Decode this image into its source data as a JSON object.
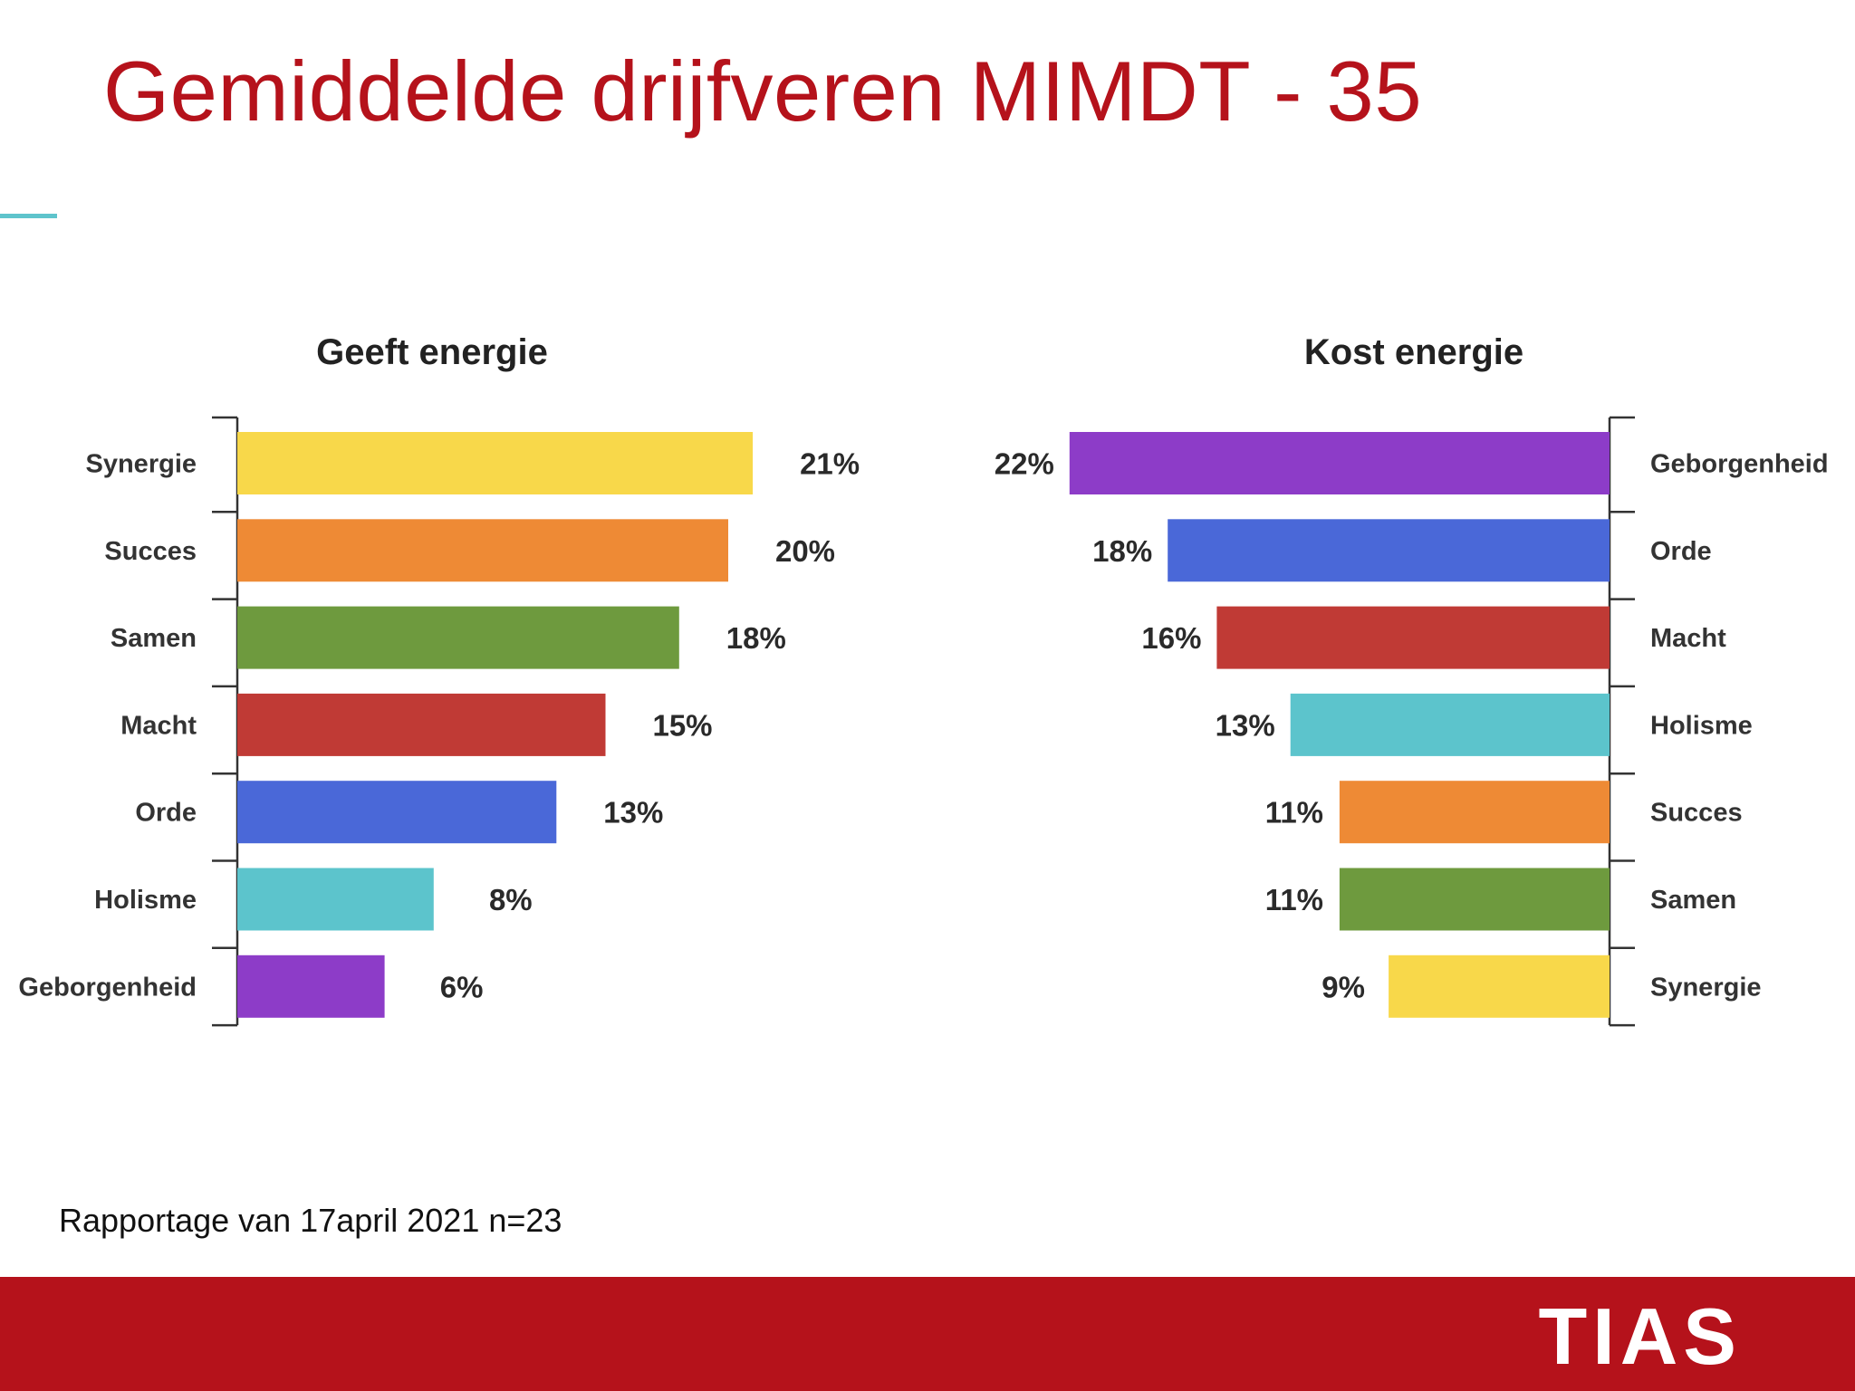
{
  "slide": {
    "title": "Gemiddelde drijfveren MIMDT - 35",
    "footnote": "Rapportage van 17april 2021 n=23",
    "brand": "TIAS"
  },
  "colors": {
    "title": "#b5121b",
    "footer": "#b5121b",
    "accent": "#5ec4cc"
  },
  "chart_data": [
    {
      "type": "bar",
      "orientation": "horizontal",
      "title": "Geeft energie",
      "categories": [
        "Synergie",
        "Succes",
        "Samen",
        "Macht",
        "Orde",
        "Holisme",
        "Geborgenheid"
      ],
      "values": [
        21,
        20,
        18,
        15,
        13,
        8,
        6
      ],
      "value_labels": [
        "21%",
        "20%",
        "18%",
        "15%",
        "13%",
        "8%",
        "6%"
      ],
      "colors": [
        "#f8d84a",
        "#ee8a35",
        "#6e9a3e",
        "#c03a35",
        "#4a68d8",
        "#5cc4cc",
        "#8d3cc8"
      ],
      "direction": "left-to-right",
      "xlim": [
        0,
        22
      ]
    },
    {
      "type": "bar",
      "orientation": "horizontal",
      "title": "Kost energie",
      "categories": [
        "Geborgenheid",
        "Orde",
        "Macht",
        "Holisme",
        "Succes",
        "Samen",
        "Synergie"
      ],
      "values": [
        22,
        18,
        16,
        13,
        11,
        11,
        9
      ],
      "value_labels": [
        "22%",
        "18%",
        "16%",
        "13%",
        "11%",
        "11%",
        "9%"
      ],
      "colors": [
        "#8d3cc8",
        "#4a68d8",
        "#c03a35",
        "#5cc4cc",
        "#ee8a35",
        "#6e9a3e",
        "#f8d84a"
      ],
      "direction": "right-to-left",
      "xlim": [
        0,
        22
      ]
    }
  ]
}
